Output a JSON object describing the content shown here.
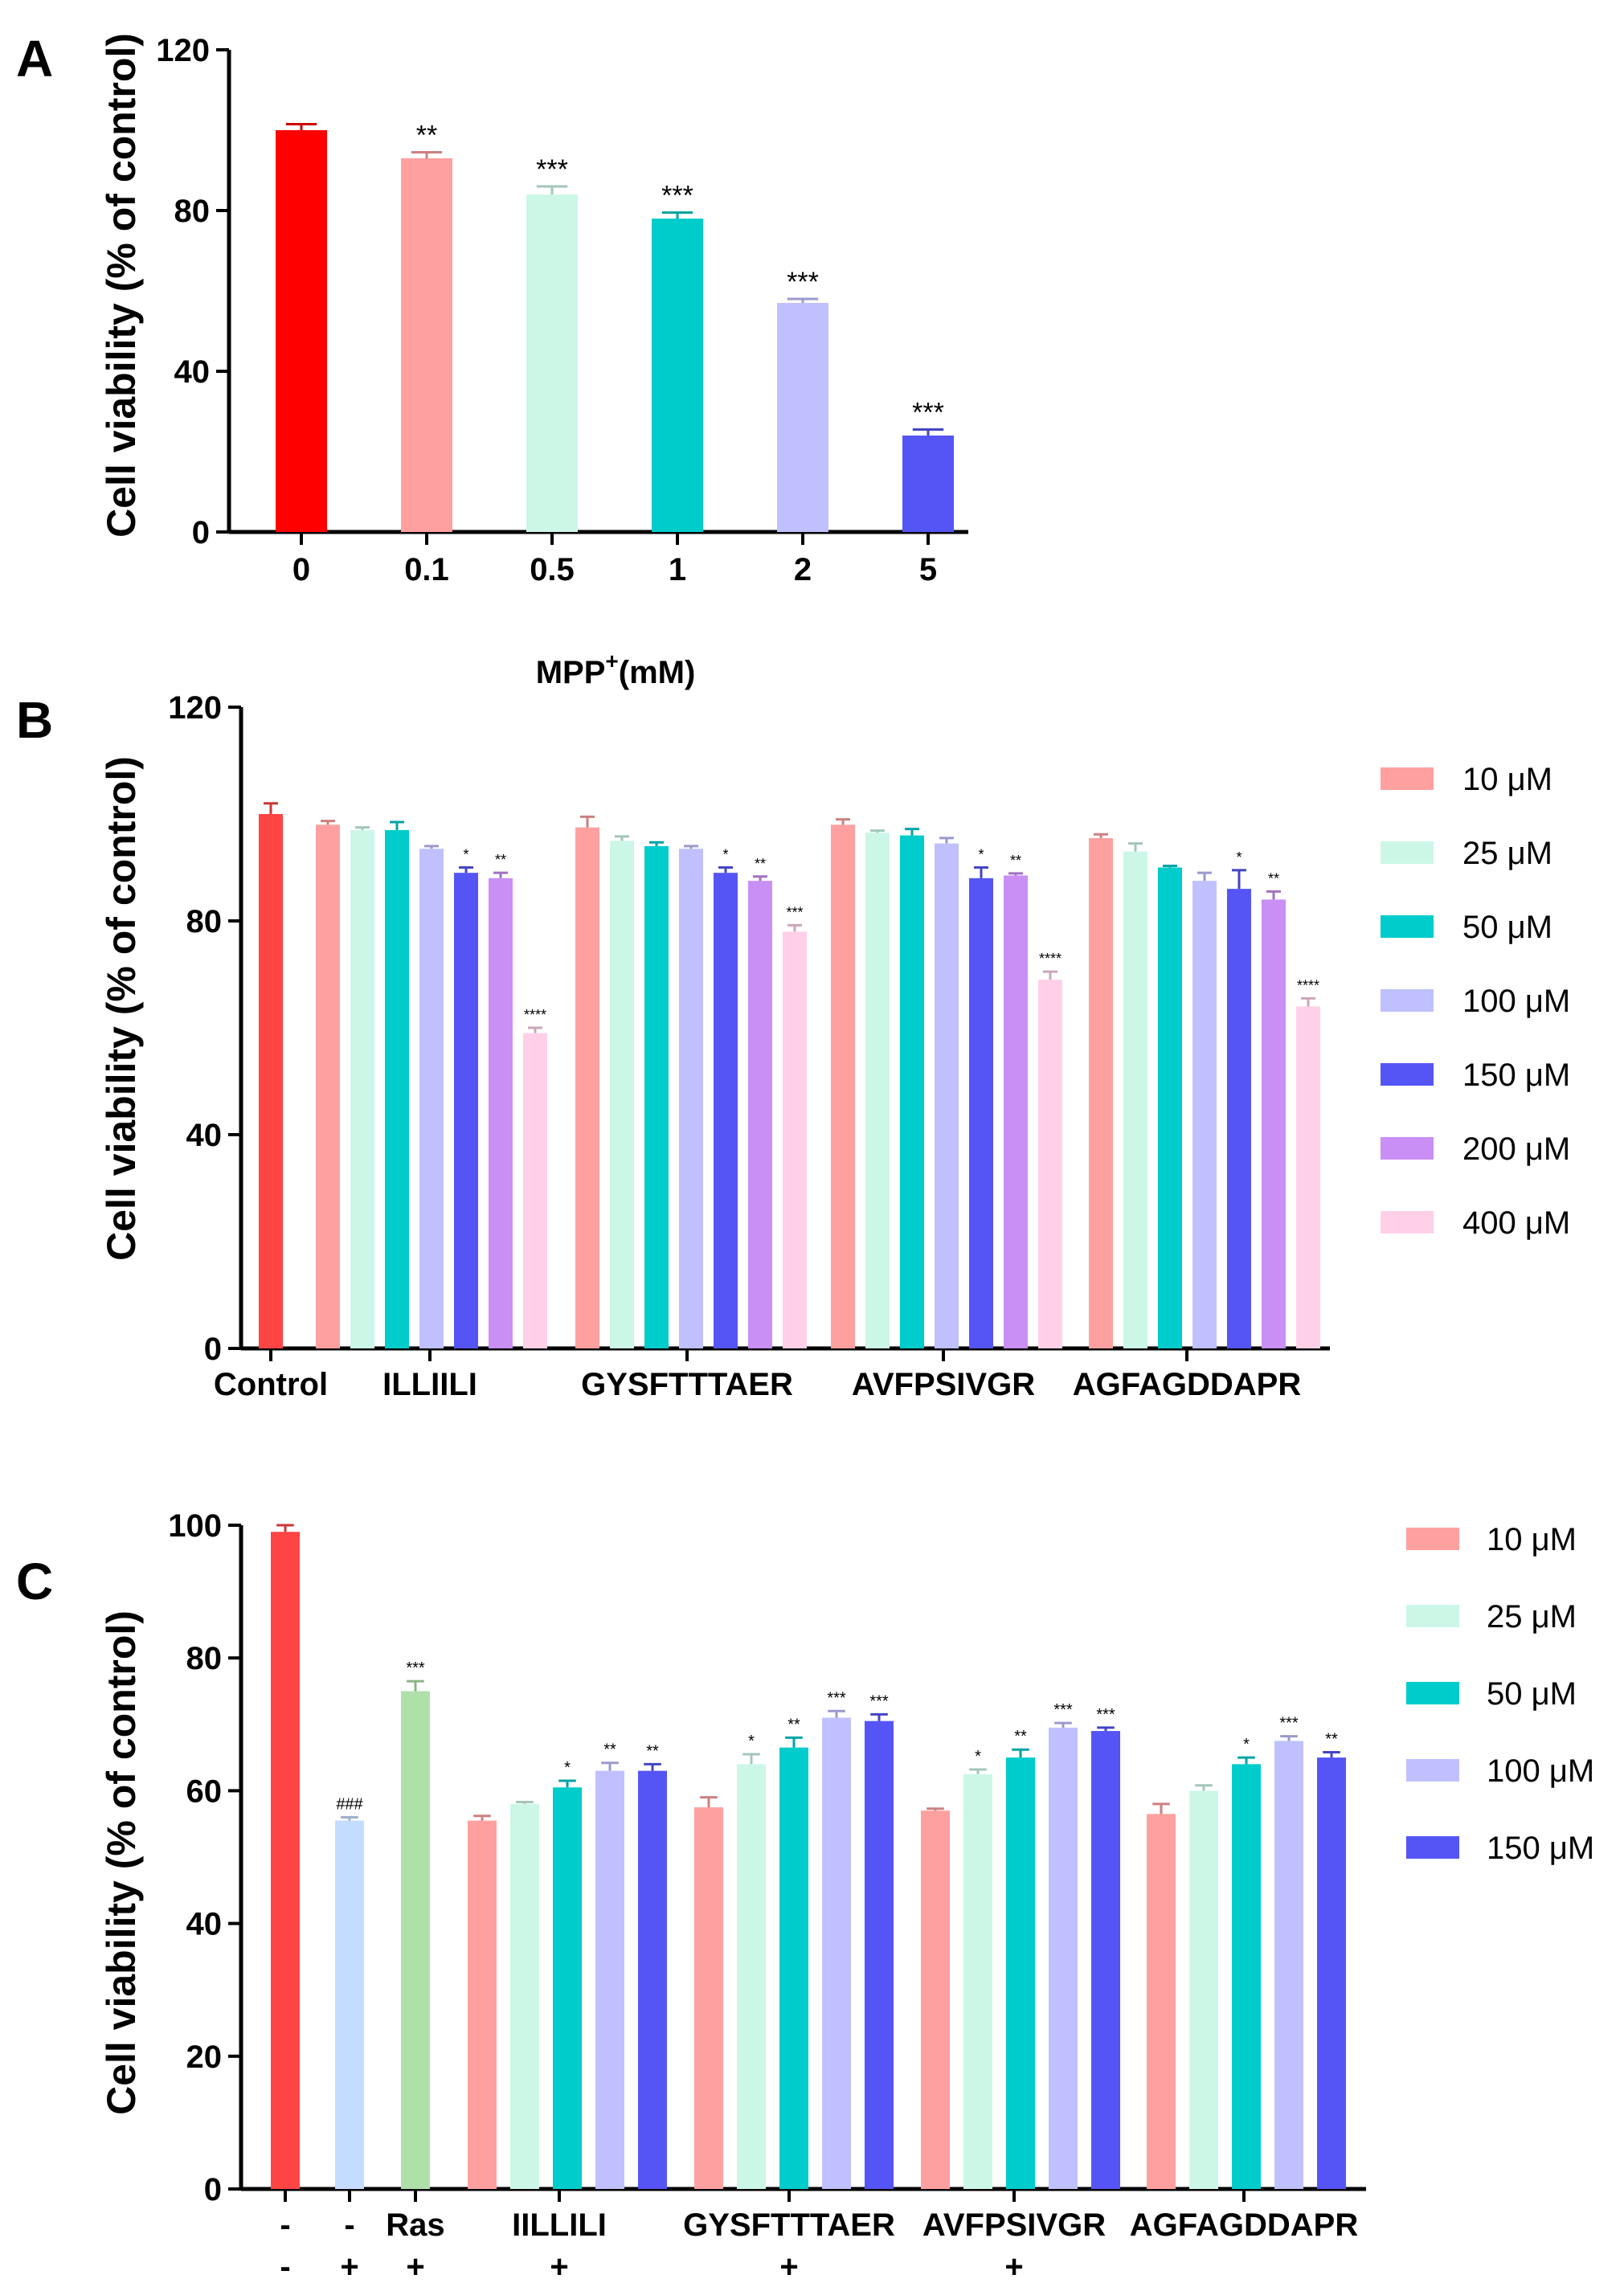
{
  "colors": {
    "red": "#ff0000",
    "red2": "#ff4444",
    "pink": "#ffa0a0",
    "mint": "#ccf7e6",
    "teal": "#00cccc",
    "lavender": "#c0c0ff",
    "blue": "#5555f5",
    "purple": "#c98ff5",
    "lightpink": "#ffd0e8",
    "lightblue": "#c4dcff",
    "lightgreen": "#b0e0aa"
  },
  "chart_data": [
    {
      "panel": "A",
      "type": "bar",
      "ylabel": "Cell viability (% of control)",
      "xlabel_main": "MPP",
      "xlabel_sup": "+",
      "xlabel_tail": "(mM)",
      "ylim": [
        0,
        120
      ],
      "yticks": [
        0,
        40,
        80,
        120
      ],
      "categories": [
        "0",
        "0.1",
        "0.5",
        "1",
        "2",
        "5"
      ],
      "values": [
        100,
        93,
        84,
        78,
        57,
        24
      ],
      "errors": [
        1.5,
        1.5,
        2,
        1.5,
        1,
        1.5
      ],
      "stars": [
        "",
        "**",
        "***",
        "***",
        "***",
        "***"
      ],
      "bar_colors": [
        "red",
        "pink",
        "mint",
        "teal",
        "lavender",
        "blue"
      ]
    },
    {
      "panel": "B",
      "type": "bar",
      "ylabel": "Cell viability (% of control)",
      "ylim": [
        0,
        120
      ],
      "yticks": [
        0,
        40,
        80,
        120
      ],
      "control": {
        "label": "Control",
        "value": 100,
        "error": 2,
        "color": "red2"
      },
      "legend": [
        {
          "label": "10 μM",
          "color": "pink"
        },
        {
          "label": "25 μM",
          "color": "mint"
        },
        {
          "label": "50 μM",
          "color": "teal"
        },
        {
          "label": "100 μM",
          "color": "lavender"
        },
        {
          "label": "150 μM",
          "color": "blue"
        },
        {
          "label": "200 μM",
          "color": "purple"
        },
        {
          "label": "400 μM",
          "color": "lightpink"
        }
      ],
      "groups": [
        {
          "label": "ILLIILI",
          "values": [
            98,
            97,
            97,
            93.5,
            89,
            88,
            59
          ],
          "errors": [
            0.7,
            0.5,
            1.5,
            0.5,
            1,
            1,
            1
          ],
          "stars": [
            "",
            "",
            "",
            "",
            "*",
            "**",
            "****"
          ]
        },
        {
          "label": "GYSFTTTAER",
          "values": [
            97.5,
            95,
            94,
            93.5,
            89,
            87.5,
            78
          ],
          "errors": [
            2,
            0.8,
            0.7,
            0.5,
            1,
            0.8,
            1.2
          ],
          "stars": [
            "",
            "",
            "",
            "",
            "*",
            "**",
            "***"
          ]
        },
        {
          "label": "AVFPSIVGR",
          "values": [
            98,
            96.5,
            96,
            94.5,
            88,
            88.5,
            69
          ],
          "errors": [
            1,
            0.4,
            1.2,
            1,
            2,
            0.4,
            1.5
          ],
          "stars": [
            "",
            "",
            "",
            "",
            "*",
            "**",
            "****"
          ]
        },
        {
          "label": "AGFAGDDAPR",
          "values": [
            95.5,
            93,
            90,
            87.5,
            86,
            84,
            64
          ],
          "errors": [
            0.7,
            1.5,
            0.3,
            1.5,
            3.5,
            1.5,
            1.5
          ],
          "stars": [
            "",
            "",
            "",
            "",
            "*",
            "**",
            "****"
          ]
        }
      ]
    },
    {
      "panel": "C",
      "type": "bar",
      "ylabel": "Cell viability (% of control)",
      "ylim": [
        0,
        100
      ],
      "yticks": [
        0,
        20,
        40,
        60,
        80,
        100
      ],
      "singles": [
        {
          "label1": "-",
          "label2": "-",
          "value": 99,
          "error": 1,
          "color": "red2",
          "star": ""
        },
        {
          "label1": "-",
          "label2": "+",
          "value": 55.5,
          "error": 0.5,
          "color": "lightblue",
          "star": "###"
        },
        {
          "label1": "Ras",
          "label2": "+",
          "value": 75,
          "error": 1.5,
          "color": "lightgreen",
          "star": "***"
        }
      ],
      "legend": [
        {
          "label": "10 μM",
          "color": "pink"
        },
        {
          "label": "25 μM",
          "color": "mint"
        },
        {
          "label": "50 μM",
          "color": "teal"
        },
        {
          "label": "100 μM",
          "color": "lavender"
        },
        {
          "label": "150 μM",
          "color": "blue"
        }
      ],
      "groups": [
        {
          "label": "IILLILI",
          "label2": "+",
          "values": [
            55.5,
            58,
            60.5,
            63,
            63
          ],
          "errors": [
            0.7,
            0.3,
            1,
            1.2,
            1
          ],
          "stars": [
            "",
            "",
            "*",
            "**",
            "**"
          ]
        },
        {
          "label": "GYSFTTTAER",
          "label2": "+",
          "values": [
            57.5,
            64,
            66.5,
            71,
            70.5
          ],
          "errors": [
            1.5,
            1.5,
            1.5,
            1,
            1
          ],
          "stars": [
            "",
            "*",
            "**",
            "***",
            "***"
          ]
        },
        {
          "label": "AVFPSIVGR",
          "label2": "+",
          "values": [
            57,
            62.5,
            65,
            69.5,
            69
          ],
          "errors": [
            0.3,
            0.7,
            1.2,
            0.7,
            0.5
          ],
          "stars": [
            "",
            "*",
            "**",
            "***",
            "***"
          ]
        },
        {
          "label": "AGFAGDDAPR",
          "label2": "",
          "values": [
            56.5,
            60,
            64,
            67.5,
            65
          ],
          "errors": [
            1.5,
            0.8,
            1,
            0.7,
            0.8
          ],
          "stars": [
            "",
            "",
            "*",
            "***",
            "**"
          ]
        }
      ]
    }
  ]
}
